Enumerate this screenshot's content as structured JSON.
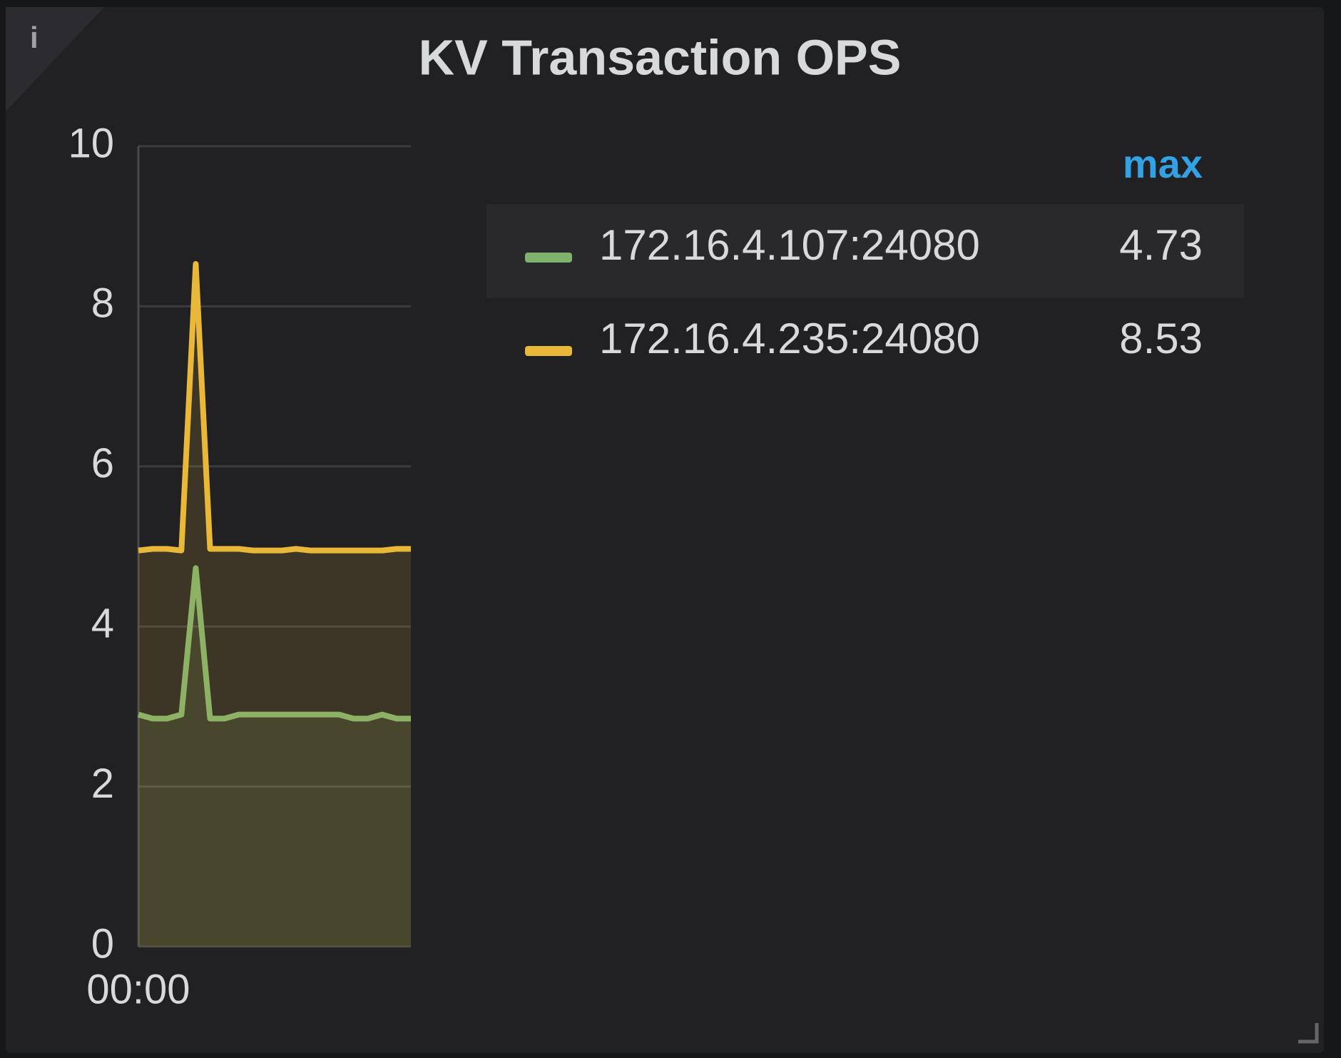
{
  "chart_data": {
    "type": "line",
    "title": "KV Transaction OPS",
    "categories": [
      "00:00",
      null,
      null,
      null,
      null,
      null,
      null,
      null,
      null,
      null,
      null,
      null,
      null,
      null,
      null,
      null,
      null,
      null,
      null,
      null
    ],
    "series": [
      {
        "name": "172.16.4.107:24080",
        "color": "#7eb26d",
        "max": 4.73,
        "values": [
          2.9,
          2.85,
          2.85,
          2.9,
          4.73,
          2.85,
          2.85,
          2.9,
          2.9,
          2.9,
          2.9,
          2.9,
          2.9,
          2.9,
          2.9,
          2.85,
          2.85,
          2.9,
          2.85,
          2.85
        ]
      },
      {
        "name": "172.16.4.235:24080",
        "color": "#eab839",
        "max": 8.53,
        "values": [
          4.95,
          4.97,
          4.97,
          4.95,
          8.53,
          4.97,
          4.97,
          4.97,
          4.95,
          4.95,
          4.95,
          4.97,
          4.95,
          4.95,
          4.95,
          4.95,
          4.95,
          4.95,
          4.97,
          4.97
        ]
      }
    ],
    "legend_header": "max",
    "ylim": [
      0,
      10
    ],
    "yticks": [
      0,
      2,
      4,
      6,
      8,
      10
    ],
    "grid": true
  }
}
